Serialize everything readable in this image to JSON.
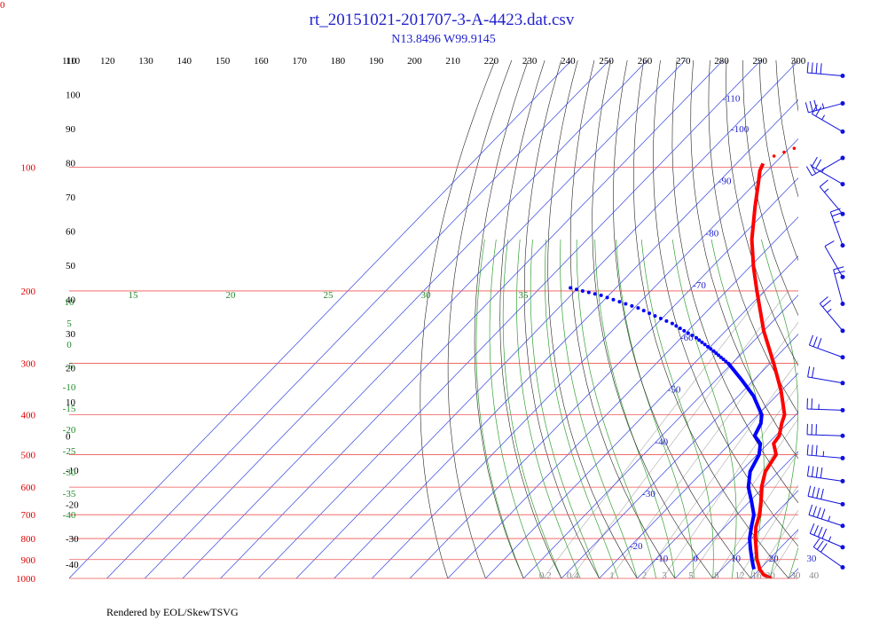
{
  "header": {
    "title": "rt_20151021-201707-3-A-4423.dat.csv",
    "subtitle": "N13.8496 W99.9145",
    "corner_label": "0"
  },
  "footer": {
    "credit": "Rendered by EOL/SkewTSVG"
  },
  "colors": {
    "isotherm": "#3344dd",
    "isobar": "#ee5555",
    "dry_adiabat": "#222222",
    "moist_adiabat": "#33a033",
    "mixing_ratio": "#aaaaaa",
    "temperature": "#ff0000",
    "dewpoint": "#0000ff",
    "wind": "#1111dd"
  },
  "chart_data": {
    "type": "line",
    "chart_kind": "skew-T log-p thermodynamic diagram",
    "title": "rt_20151021-201707-3-A-4423.dat.csv",
    "subtitle": "N13.8496 W99.9145",
    "ylim": [
      1000,
      100
    ],
    "y_scale": "log",
    "pressure_ticks": [
      "100",
      "200",
      "300",
      "400",
      "500",
      "600",
      "700",
      "800",
      "900",
      "1000"
    ],
    "potential_temperature_ticks": [
      "110",
      "120",
      "130",
      "140",
      "150",
      "160",
      "170",
      "180",
      "190",
      "200",
      "210",
      "220",
      "230",
      "240",
      "250",
      "260",
      "270",
      "280",
      "290",
      "300"
    ],
    "isotherm_labels": [
      "-110",
      "-100",
      "-90",
      "-80",
      "-70",
      "-60",
      "-50",
      "-40",
      "-30",
      "-20",
      "-10",
      "0",
      "10",
      "20",
      "30"
    ],
    "theta_left_labels": [
      "110",
      "100",
      "90",
      "80",
      "70",
      "60",
      "50",
      "40",
      "30",
      "20",
      "10",
      "0",
      "-10",
      "-20",
      "-30",
      "-40"
    ],
    "moist_adiabat_labels": [
      "15",
      "20",
      "25",
      "30",
      "35",
      "10",
      "5",
      "0",
      "-5",
      "-10",
      "-15",
      "-20",
      "-25",
      "-30",
      "-35",
      "-40"
    ],
    "mixing_ratio_labels": [
      "0.2",
      "0.4",
      "1",
      "2",
      "3",
      "5",
      "8",
      "12",
      "16",
      "20",
      "30",
      "40"
    ],
    "series": [
      {
        "key": "temperature",
        "points": [
          {
            "p": 1000,
            "t": 25.5
          },
          {
            "p": 980,
            "t": 22.5
          },
          {
            "p": 950,
            "t": 20
          },
          {
            "p": 925,
            "t": 18.5
          },
          {
            "p": 900,
            "t": 16.8
          },
          {
            "p": 850,
            "t": 14
          },
          {
            "p": 800,
            "t": 11
          },
          {
            "p": 750,
            "t": 8.2
          },
          {
            "p": 700,
            "t": 6
          },
          {
            "p": 650,
            "t": 3
          },
          {
            "p": 600,
            "t": -0.5
          },
          {
            "p": 550,
            "t": -3.5
          },
          {
            "p": 500,
            "t": -5
          },
          {
            "p": 470,
            "t": -8.5
          },
          {
            "p": 450,
            "t": -9
          },
          {
            "p": 420,
            "t": -11.5
          },
          {
            "p": 400,
            "t": -13
          },
          {
            "p": 350,
            "t": -20
          },
          {
            "p": 300,
            "t": -29
          },
          {
            "p": 250,
            "t": -40
          },
          {
            "p": 200,
            "t": -52
          },
          {
            "p": 175,
            "t": -59
          },
          {
            "p": 150,
            "t": -66.5
          },
          {
            "p": 125,
            "t": -74
          },
          {
            "p": 110,
            "t": -79
          },
          {
            "p": 102,
            "t": -82
          },
          {
            "p": 98,
            "t": -83
          }
        ]
      },
      {
        "key": "temperature_upper",
        "points": [
          {
            "p": 94,
            "t": -82
          },
          {
            "p": 88,
            "t": -77
          },
          {
            "p": 80,
            "t": -70.5
          },
          {
            "p": 76,
            "t": -68
          },
          {
            "p": 72,
            "t": -66
          },
          {
            "p": 68,
            "t": -64.5
          },
          {
            "p": 64,
            "t": -63.5
          },
          {
            "p": 60,
            "t": -62
          },
          {
            "p": 56,
            "t": -61
          },
          {
            "p": 52,
            "t": -59
          }
        ]
      },
      {
        "key": "dewpoint",
        "points": [
          {
            "p": 950,
            "t": 18.5
          },
          {
            "p": 925,
            "t": 17
          },
          {
            "p": 900,
            "t": 15.5
          },
          {
            "p": 850,
            "t": 12.5
          },
          {
            "p": 800,
            "t": 9.5
          },
          {
            "p": 750,
            "t": 7
          },
          {
            "p": 700,
            "t": 4.5
          },
          {
            "p": 650,
            "t": 0.5
          },
          {
            "p": 600,
            "t": -4
          },
          {
            "p": 550,
            "t": -7.5
          },
          {
            "p": 500,
            "t": -9.5
          },
          {
            "p": 470,
            "t": -12
          },
          {
            "p": 450,
            "t": -15.5
          },
          {
            "p": 420,
            "t": -17
          },
          {
            "p": 400,
            "t": -19
          },
          {
            "p": 360,
            "t": -26
          },
          {
            "p": 330,
            "t": -33
          },
          {
            "p": 300,
            "t": -41
          },
          {
            "p": 280,
            "t": -48
          },
          {
            "p": 260,
            "t": -56
          },
          {
            "p": 240,
            "t": -66
          },
          {
            "p": 220,
            "t": -79
          },
          {
            "p": 205,
            "t": -92
          },
          {
            "p": 195,
            "t": -104
          }
        ]
      }
    ],
    "wind_barbs": [
      {
        "p": 60,
        "dir": 275,
        "speed_kt": 40
      },
      {
        "p": 70,
        "dir": 255,
        "speed_kt": 35
      },
      {
        "p": 82,
        "dir": 300,
        "speed_kt": 25
      },
      {
        "p": 95,
        "dir": 240,
        "speed_kt": 20
      },
      {
        "p": 110,
        "dir": 300,
        "speed_kt": 25
      },
      {
        "p": 130,
        "dir": 320,
        "speed_kt": 15
      },
      {
        "p": 155,
        "dir": 340,
        "speed_kt": 25
      },
      {
        "p": 185,
        "dir": 330,
        "speed_kt": 10
      },
      {
        "p": 215,
        "dir": 345,
        "speed_kt": 20
      },
      {
        "p": 250,
        "dir": 320,
        "speed_kt": 25
      },
      {
        "p": 290,
        "dir": 290,
        "speed_kt": 30
      },
      {
        "p": 335,
        "dir": 280,
        "speed_kt": 20
      },
      {
        "p": 390,
        "dir": 272,
        "speed_kt": 25
      },
      {
        "p": 450,
        "dir": 272,
        "speed_kt": 30
      },
      {
        "p": 510,
        "dir": 275,
        "speed_kt": 35
      },
      {
        "p": 580,
        "dir": 278,
        "speed_kt": 40
      },
      {
        "p": 660,
        "dir": 283,
        "speed_kt": 40
      },
      {
        "p": 745,
        "dir": 288,
        "speed_kt": 45
      },
      {
        "p": 840,
        "dir": 293,
        "speed_kt": 45
      },
      {
        "p": 940,
        "dir": 305,
        "speed_kt": 30
      }
    ]
  }
}
